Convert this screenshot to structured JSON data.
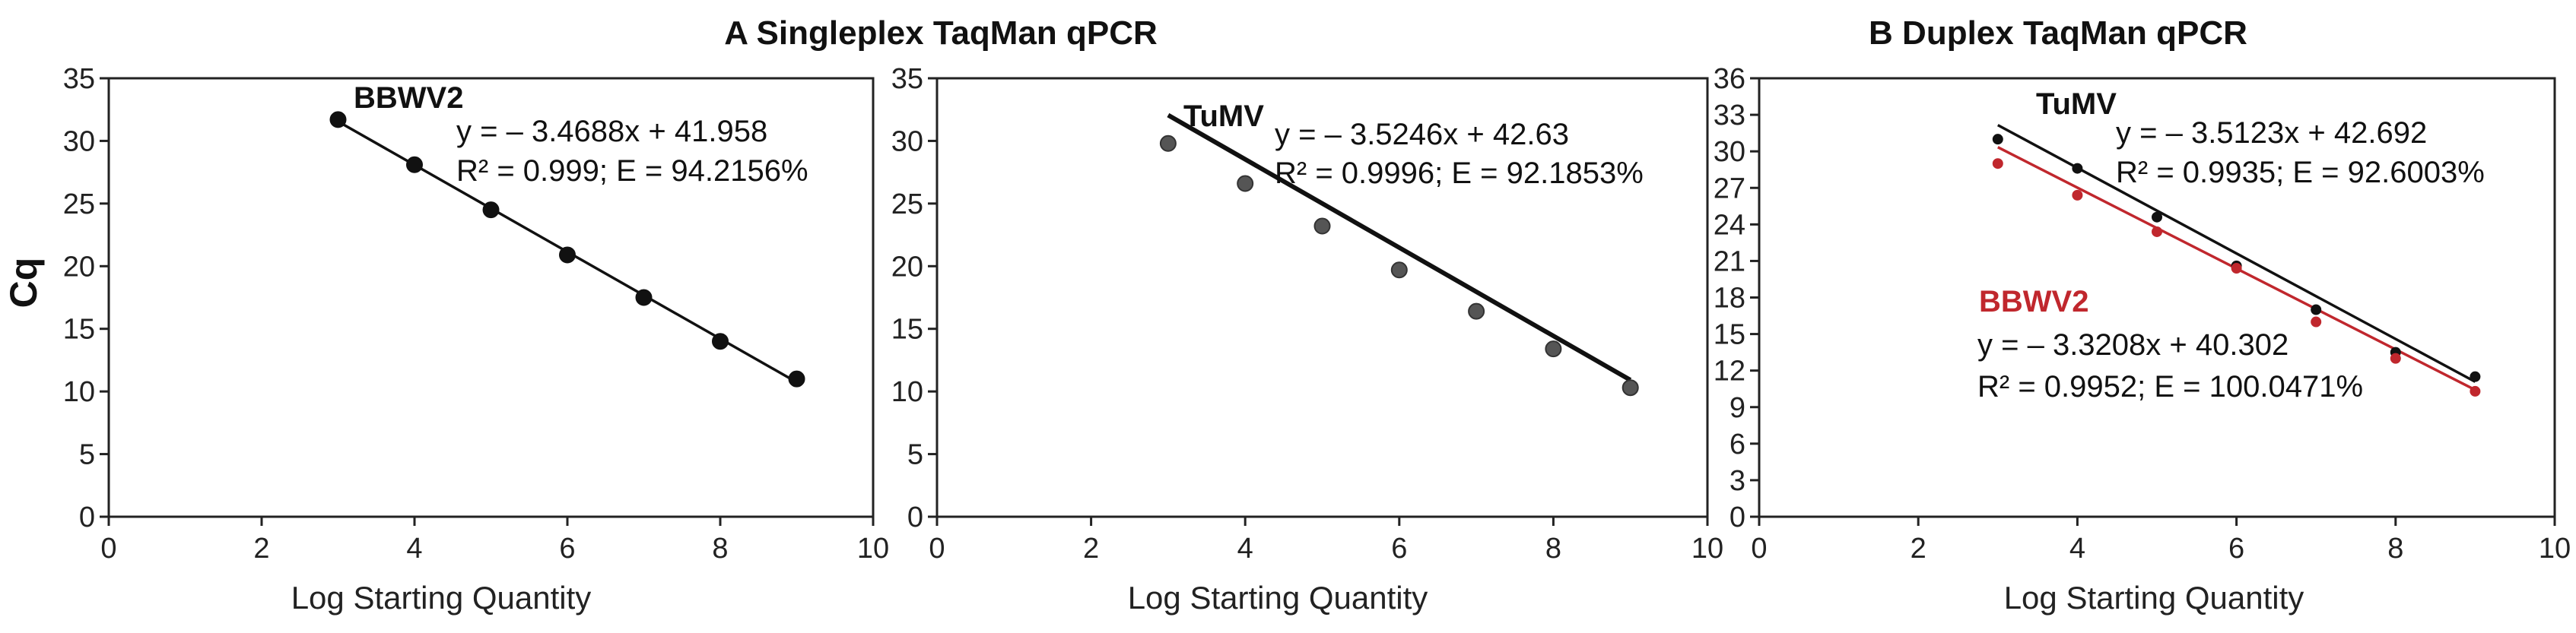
{
  "figure": {
    "ylabel": "Cq",
    "group_titles": {
      "singleplex": "A  Singleplex TaqMan qPCR",
      "duplex": "B  Duplex TaqMan qPCR"
    }
  },
  "colors": {
    "black": "#111111",
    "red": "#c0272d",
    "grey_point": "#555555"
  },
  "chart_data": [
    {
      "type": "scatter",
      "id": "panelA1",
      "xlabel": "Log Starting Quantity",
      "ylabel": "Cq",
      "xlim": [
        0,
        10
      ],
      "ylim": [
        0,
        35
      ],
      "xticks": [
        0,
        2,
        4,
        6,
        8,
        10
      ],
      "yticks": [
        0,
        5,
        10,
        15,
        20,
        25,
        30,
        35
      ],
      "grid": false,
      "series": [
        {
          "name": "BBWV2",
          "color": "#111111",
          "x": [
            3,
            4,
            5,
            6,
            7,
            8,
            9
          ],
          "y": [
            31.7,
            28.1,
            24.5,
            20.9,
            17.5,
            14.0,
            11.0
          ],
          "fit": {
            "slope": -3.4688,
            "intercept": 41.958
          },
          "equation": "y = – 3.4688x + 41.958",
          "stats": "R² = 0.999; E = 94.2156%"
        }
      ]
    },
    {
      "type": "scatter",
      "id": "panelA2",
      "xlabel": "Log Starting Quantity",
      "ylabel": "",
      "xlim": [
        0,
        10
      ],
      "ylim": [
        0,
        35
      ],
      "xticks": [
        0,
        2,
        4,
        6,
        8,
        10
      ],
      "yticks": [
        0,
        5,
        10,
        15,
        20,
        25,
        30,
        35
      ],
      "grid": false,
      "series": [
        {
          "name": "TuMV",
          "color": "#111111",
          "x": [
            3,
            4,
            5,
            6,
            7,
            8,
            9
          ],
          "y": [
            29.8,
            26.6,
            23.2,
            19.7,
            16.4,
            13.4,
            10.3
          ],
          "fit": {
            "slope": -3.5246,
            "intercept": 42.63
          },
          "equation": "y = – 3.5246x + 42.63",
          "stats": "R² = 0.9996; E = 92.1853%"
        }
      ]
    },
    {
      "type": "scatter",
      "id": "panelB",
      "xlabel": "Log Starting Quantity",
      "ylabel": "",
      "xlim": [
        0,
        10
      ],
      "ylim": [
        0,
        36
      ],
      "xticks": [
        0,
        2,
        4,
        6,
        8,
        10
      ],
      "yticks": [
        0,
        3,
        6,
        9,
        12,
        15,
        18,
        21,
        24,
        27,
        30,
        33,
        36
      ],
      "grid": false,
      "series": [
        {
          "name": "TuMV",
          "color": "#111111",
          "x": [
            3,
            4,
            5,
            6,
            7,
            8,
            9
          ],
          "y": [
            31.0,
            28.6,
            24.6,
            20.6,
            17.0,
            13.5,
            11.5
          ],
          "fit": {
            "slope": -3.5123,
            "intercept": 42.692
          },
          "equation": "y = – 3.5123x + 42.692",
          "stats": "R² = 0.9935; E = 92.6003%"
        },
        {
          "name": "BBWV2",
          "color": "#c0272d",
          "x": [
            3,
            4,
            5,
            6,
            7,
            8,
            9
          ],
          "y": [
            29.0,
            26.4,
            23.4,
            20.4,
            16.0,
            13.0,
            10.3
          ],
          "fit": {
            "slope": -3.3208,
            "intercept": 40.302
          },
          "equation": "y = – 3.3208x + 40.302",
          "stats": "R² = 0.9952; E = 100.0471%"
        }
      ]
    }
  ]
}
